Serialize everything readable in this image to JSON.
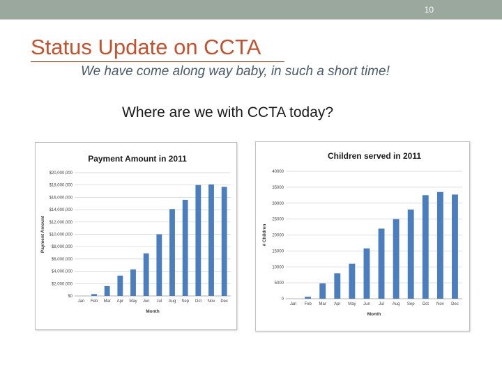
{
  "slide": {
    "number": "10",
    "title": "Status Update on CCTA",
    "subtitle": "We have come along way baby, in such a short time!",
    "question": "Where are we with CCTA today?"
  },
  "colors": {
    "bar": "#4a7ebf",
    "title": "#c8502a",
    "topbar": "#9aa89e"
  },
  "chart_data": [
    {
      "type": "bar",
      "title": "Payment Amount in 2011",
      "xlabel": "Month",
      "ylabel": "Payment Amount",
      "categories": [
        "Jan",
        "Feb",
        "Mar",
        "Apr",
        "May",
        "Jun",
        "Jul",
        "Aug",
        "Sep",
        "Oct",
        "Nov",
        "Dec"
      ],
      "values": [
        0,
        300000,
        1600000,
        3300000,
        4300000,
        6900000,
        10000000,
        14100000,
        15600000,
        18000000,
        18100000,
        17700000
      ],
      "ylim": [
        0,
        20000000
      ],
      "yticks": [
        "$0",
        "$2,000,000",
        "$4,000,000",
        "$6,000,000",
        "$8,000,000",
        "$10,000,000",
        "$12,000,000",
        "$14,000,000",
        "$16,000,000",
        "$18,000,000",
        "$20,000,000"
      ],
      "grid": true
    },
    {
      "type": "bar",
      "title": "Children served in 2011",
      "xlabel": "Month",
      "ylabel": "# Children",
      "categories": [
        "Jan",
        "Feb",
        "Mar",
        "Apr",
        "May",
        "Jun",
        "Jul",
        "Aug",
        "Sep",
        "Oct",
        "Nov",
        "Dec"
      ],
      "values": [
        0,
        600,
        4800,
        8000,
        11000,
        15800,
        22000,
        25000,
        28000,
        32500,
        33500,
        32700
      ],
      "ylim": [
        0,
        40000
      ],
      "yticks": [
        "0",
        "5000",
        "10000",
        "15000",
        "20000",
        "25000",
        "30000",
        "35000",
        "40000"
      ],
      "grid": true
    }
  ]
}
